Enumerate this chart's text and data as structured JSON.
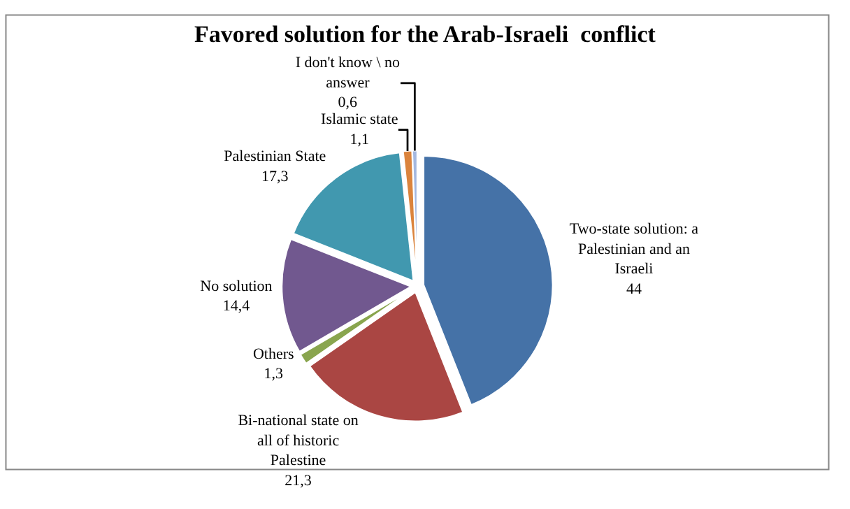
{
  "chart_data": {
    "type": "pie",
    "title": "Favored solution for the Arab-Israeli  conflict",
    "categories": [
      "Two-state solution: a Palestinian and an Israeli",
      "Bi-national state on all of historic Palestine",
      "Others",
      "No solution",
      "Palestinian State",
      "Islamic state",
      "I don't know \\ no answer"
    ],
    "values": [
      44,
      21.3,
      1.3,
      14.4,
      17.3,
      1.1,
      0.6
    ],
    "value_labels": [
      "44",
      "21,3",
      "1,3",
      "14,4",
      "17,3",
      "1,1",
      "0,6"
    ],
    "colors": [
      "#4572a7",
      "#aa4643",
      "#89a54e",
      "#71588f",
      "#4198af",
      "#db843d",
      "#a4b8e0"
    ],
    "legend": false
  }
}
